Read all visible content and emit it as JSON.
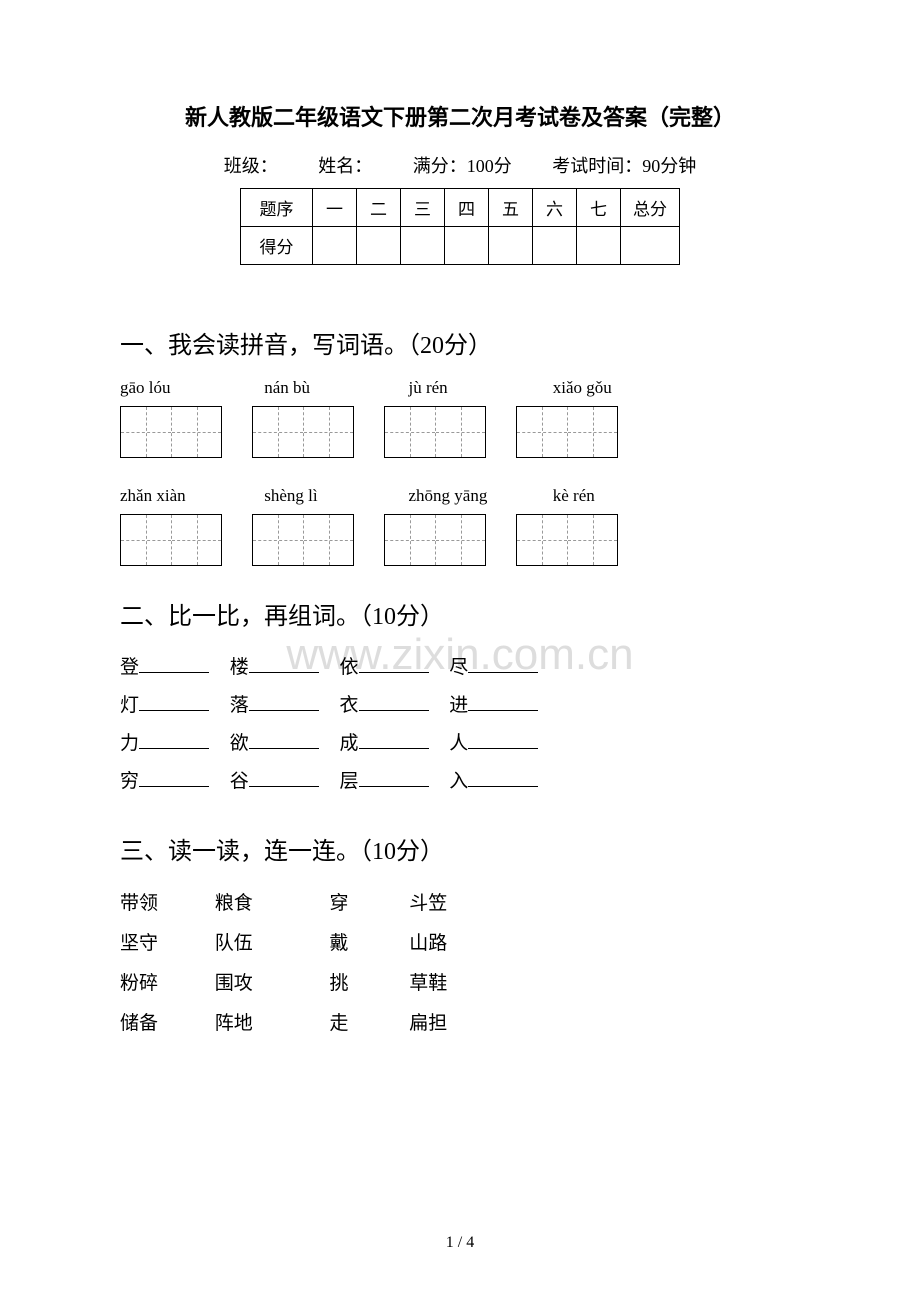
{
  "title": "新人教版二年级语文下册第二次月考试卷及答案（完整）",
  "info": {
    "class": "班级：",
    "name": "姓名：",
    "full": "满分：100分",
    "time": "考试时间：90分钟"
  },
  "scoreTable": {
    "header": [
      "题序",
      "一",
      "二",
      "三",
      "四",
      "五",
      "六",
      "七",
      "总分"
    ],
    "row2label": "得分"
  },
  "section1": {
    "heading": "一、我会读拼音，写词语。（20分）",
    "row1": [
      "gāo lóu",
      "nán bù",
      "jù rén",
      "xiǎo gǒu"
    ],
    "row2": [
      "zhǎn xiàn",
      "shèng lì",
      "zhōng yāng",
      "kè rén"
    ]
  },
  "section2": {
    "heading": "二、比一比，再组词。（10分）",
    "lines": [
      [
        "登",
        "楼",
        "依",
        "尽"
      ],
      [
        "灯",
        "落",
        "衣",
        "进"
      ],
      [
        "力",
        "欲",
        "成",
        "人"
      ],
      [
        "穷",
        "谷",
        "层",
        "入"
      ]
    ]
  },
  "section3": {
    "heading": "三、读一读，连一连。（10分）",
    "rows": [
      [
        "带领",
        "粮食",
        "穿",
        "斗笠"
      ],
      [
        "坚守",
        "队伍",
        "戴",
        "山路"
      ],
      [
        "粉碎",
        "围攻",
        "挑",
        "草鞋"
      ],
      [
        "储备",
        "阵地",
        "走",
        "扁担"
      ]
    ]
  },
  "watermark": "www.zixin.com.cn",
  "pageNum": "1 / 4"
}
